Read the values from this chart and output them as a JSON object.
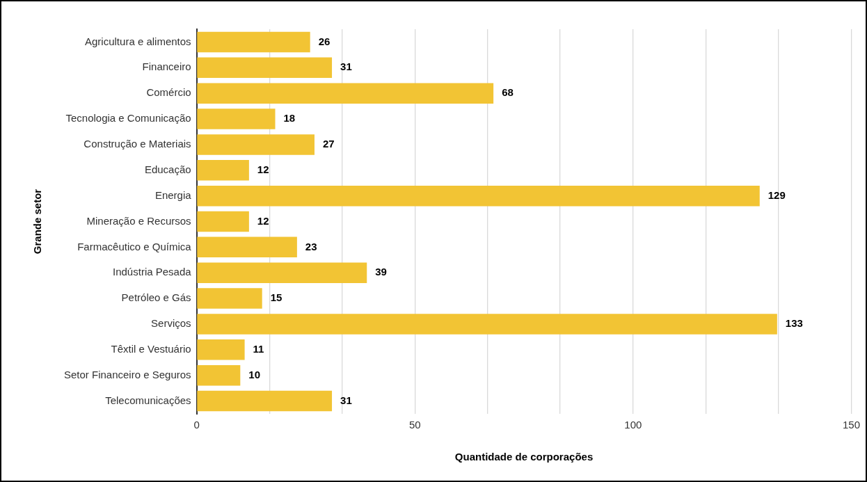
{
  "chart_data": {
    "type": "bar",
    "orientation": "horizontal",
    "xlabel": "Quantidade de corporações",
    "ylabel": "Grande setor",
    "categories": [
      "Agricultura e alimentos",
      "Financeiro",
      "Comércio",
      "Tecnologia e Comunicação",
      "Construção e Materiais",
      "Educação",
      "Energia",
      "Mineração e Recursos",
      "Farmacêutico e Química",
      "Indústria Pesada",
      "Petróleo e Gás",
      "Serviços",
      "Têxtil e Vestuário",
      "Setor Financeiro e Seguros",
      "Telecomunicações"
    ],
    "values": [
      26,
      31,
      68,
      18,
      27,
      12,
      129,
      12,
      23,
      39,
      15,
      133,
      11,
      10,
      31
    ],
    "color": "#f2c434",
    "xlim": [
      0,
      150
    ],
    "xticks": [
      0,
      {
        "value": 16.7,
        "label": null
      },
      {
        "value": 33.3,
        "label": null
      },
      50,
      {
        "value": 66.7,
        "label": null
      },
      {
        "value": 83.3,
        "label": null
      },
      100,
      {
        "value": 116.7,
        "label": null
      },
      {
        "value": 133.3,
        "label": null
      },
      150
    ],
    "grid": "x",
    "legend": false,
    "data_labels": true
  }
}
